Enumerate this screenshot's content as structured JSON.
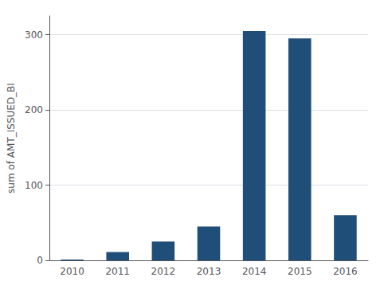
{
  "chart_data": {
    "type": "bar",
    "categories": [
      "2010",
      "2011",
      "2012",
      "2013",
      "2014",
      "2015",
      "2016"
    ],
    "values": [
      1,
      11,
      25,
      45,
      305,
      295,
      60
    ],
    "color": "#1f4e79",
    "ylabel": "sum of AMT_ISSUED_BI",
    "ylim": [
      0,
      325
    ],
    "yticks": [
      0,
      100,
      200,
      300
    ],
    "grid": true
  }
}
